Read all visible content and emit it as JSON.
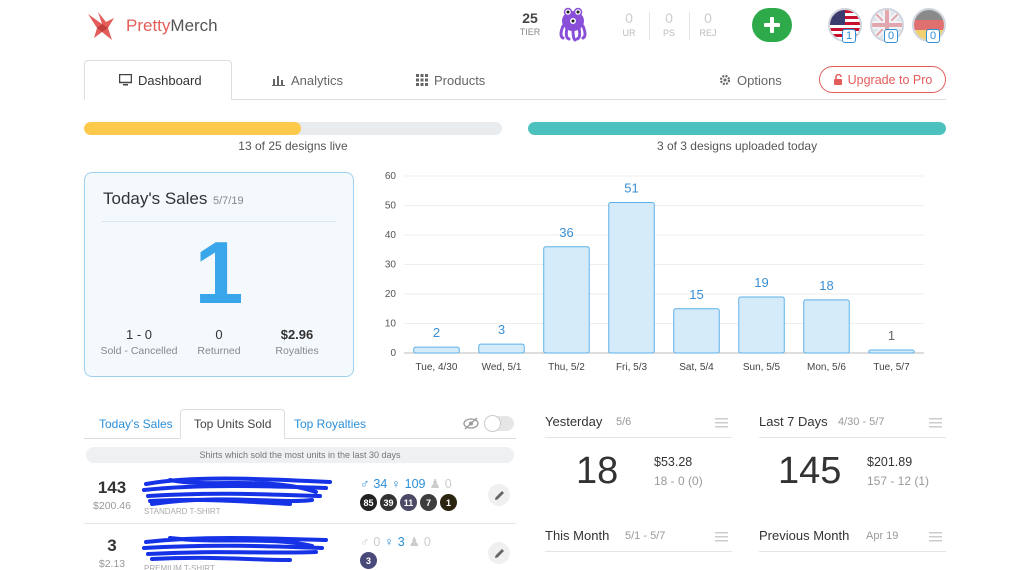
{
  "app": {
    "name_part1": "Pretty",
    "name_part2": "Merch"
  },
  "header": {
    "tier_value": "25",
    "tier_label": "TIER",
    "stats": [
      {
        "value": "0",
        "label": "UR"
      },
      {
        "value": "0",
        "label": "PS"
      },
      {
        "value": "0",
        "label": "REJ"
      }
    ],
    "flags": [
      {
        "name": "us",
        "count": "1"
      },
      {
        "name": "uk",
        "count": "0"
      },
      {
        "name": "de",
        "count": "0"
      }
    ]
  },
  "tabs": {
    "dashboard": "Dashboard",
    "analytics": "Analytics",
    "products": "Products",
    "options": "Options",
    "upgrade": "Upgrade to Pro"
  },
  "progress": {
    "live": {
      "label": "13 of 25 designs live",
      "fraction": 0.52,
      "color": "#fcc94b"
    },
    "uploaded": {
      "label": "3 of 3 designs uploaded today",
      "fraction": 1.0,
      "color": "#4cc1bd"
    }
  },
  "today": {
    "title": "Today's Sales",
    "date": "5/7/19",
    "count": "1",
    "sold_cancelled": "1 - 0",
    "sold_cancelled_label": "Sold - Cancelled",
    "returned": "0",
    "returned_label": "Returned",
    "royalties": "$2.96",
    "royalties_label": "Royalties"
  },
  "chart_data": {
    "type": "bar",
    "categories": [
      "Tue, 4/30",
      "Wed, 5/1",
      "Thu, 5/2",
      "Fri, 5/3",
      "Sat, 5/4",
      "Sun, 5/5",
      "Mon, 5/6",
      "Tue, 5/7"
    ],
    "values": [
      2,
      3,
      36,
      51,
      15,
      19,
      18,
      1
    ],
    "ylim": [
      0,
      60
    ],
    "yticks": [
      0,
      10,
      20,
      30,
      40,
      50,
      60
    ],
    "grid": true,
    "bar_fill": "#d6ebfa",
    "bar_stroke": "#5bb0ea",
    "label_color": "#3a8fd4"
  },
  "lower_tabs": {
    "today_sales": "Today's Sales",
    "top_units": "Top Units Sold",
    "top_royalties": "Top Royalties",
    "note": "Shirts which sold the most units in the last 30 days"
  },
  "products": [
    {
      "units": "143",
      "revenue": "$200.46",
      "type": "STANDARD T-SHIRT",
      "fits": [
        {
          "icon": "male",
          "value": "34",
          "on": true
        },
        {
          "icon": "female",
          "value": "109",
          "on": true
        },
        {
          "icon": "kid",
          "value": "0",
          "on": false
        }
      ],
      "badges": [
        {
          "value": "85",
          "color": "#222222"
        },
        {
          "value": "39",
          "color": "#333333"
        },
        {
          "value": "11",
          "color": "#4a4a66"
        },
        {
          "value": "7",
          "color": "#3d3d3d"
        },
        {
          "value": "1",
          "color": "#2b2410"
        }
      ]
    },
    {
      "units": "3",
      "revenue": "$2.13",
      "type": "PREMIUM T-SHIRT",
      "fits": [
        {
          "icon": "male",
          "value": "0",
          "on": false
        },
        {
          "icon": "female",
          "value": "3",
          "on": true
        },
        {
          "icon": "kid",
          "value": "0",
          "on": false
        }
      ],
      "badges": [
        {
          "value": "3",
          "color": "#4a4a7a"
        }
      ]
    }
  ],
  "summaries": {
    "yesterday": {
      "title": "Yesterday",
      "date": "5/6",
      "units": "18",
      "money": "$53.28",
      "sub": "18 - 0  (0)"
    },
    "last7": {
      "title": "Last 7 Days",
      "date": "4/30 - 5/7",
      "units": "145",
      "money": "$201.89",
      "sub": "157 - 12  (1)"
    },
    "this_month": {
      "title": "This Month",
      "date": "5/1 - 5/7"
    },
    "prev_month": {
      "title": "Previous Month",
      "date": "Apr 19"
    }
  }
}
